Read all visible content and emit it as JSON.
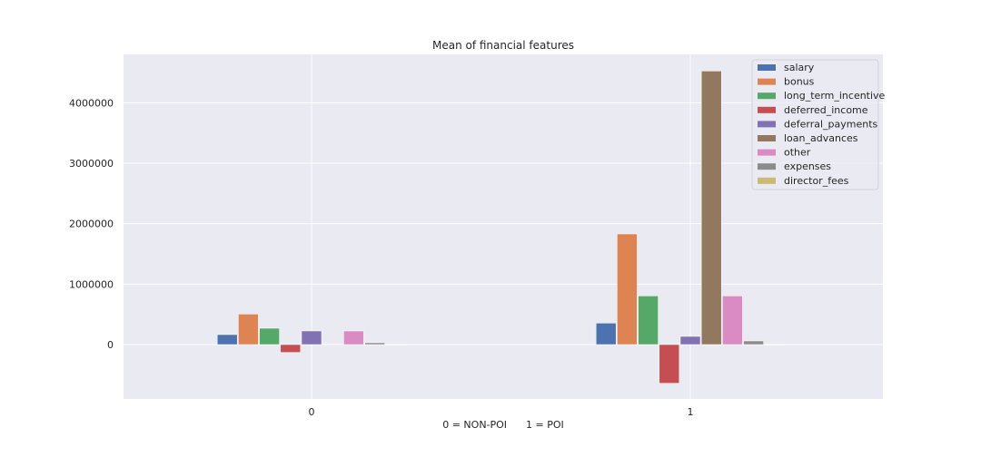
{
  "chart_data": {
    "type": "bar",
    "title": "Mean of financial features",
    "xlabel": "0 = NON-POI      1 = POI",
    "ylabel": "",
    "categories": [
      "0",
      "1"
    ],
    "ylim": [
      -900000,
      4800000
    ],
    "yticks": [
      "0",
      "1000000",
      "2000000",
      "3000000",
      "4000000"
    ],
    "ytick_values": [
      0,
      1000000,
      2000000,
      3000000,
      4000000
    ],
    "grid": true,
    "legend_position": "top-right",
    "series": [
      {
        "name": "salary",
        "color": "#4c72b0",
        "values": [
          165000,
          355000
        ]
      },
      {
        "name": "bonus",
        "color": "#dd8452",
        "values": [
          505000,
          1830000
        ]
      },
      {
        "name": "long_term_incentive",
        "color": "#55a868",
        "values": [
          270000,
          805000
        ]
      },
      {
        "name": "deferred_income",
        "color": "#c44e52",
        "values": [
          -130000,
          -640000
        ]
      },
      {
        "name": "deferral_payments",
        "color": "#8172b3",
        "values": [
          225000,
          135000
        ]
      },
      {
        "name": "loan_advances",
        "color": "#937860",
        "values": [
          5000,
          4525000
        ]
      },
      {
        "name": "other",
        "color": "#da8bc3",
        "values": [
          225000,
          805000
        ]
      },
      {
        "name": "expenses",
        "color": "#8c8c8c",
        "values": [
          30000,
          60000
        ]
      },
      {
        "name": "director_fees",
        "color": "#ccb974",
        "values": [
          0,
          0
        ]
      }
    ]
  }
}
